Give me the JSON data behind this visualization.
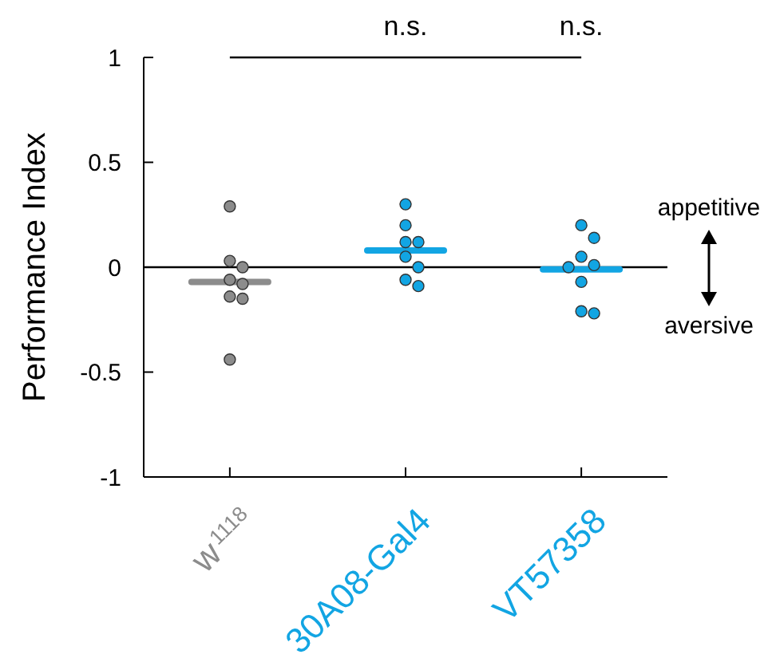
{
  "chart_data": {
    "type": "scatter",
    "ylabel": "Performance Index",
    "categories": [
      "w$^{1118}$",
      "30A08-Gal4",
      "VT57358"
    ],
    "colors": [
      "#8c8c8c",
      "#12a5e3",
      "#12a5e3"
    ],
    "ylim": [
      -1,
      1
    ],
    "yticks": [
      -1,
      -0.5,
      0,
      0.5,
      1
    ],
    "marker": "circle",
    "grid": false,
    "series": [
      {
        "x": [
          "w$^{1118}$",
          "w$^{1118}$",
          "w$^{1118}$",
          "w$^{1118}$",
          "w$^{1118}$",
          "w$^{1118}$",
          "w$^{1118}$",
          "w$^{1118}$"
        ],
        "color": "#8c8c8c",
        "values": [
          0.29,
          0.03,
          0.0,
          -0.06,
          -0.08,
          -0.14,
          -0.15,
          -0.44
        ]
      },
      {
        "x": [
          "30A08-Gal4",
          "30A08-Gal4",
          "30A08-Gal4",
          "30A08-Gal4",
          "30A08-Gal4",
          "30A08-Gal4",
          "30A08-Gal4",
          "30A08-Gal4"
        ],
        "color": "#12a5e3",
        "values": [
          0.3,
          0.2,
          0.12,
          0.12,
          0.05,
          0.0,
          -0.06,
          -0.09
        ]
      },
      {
        "x": [
          "VT57358",
          "VT57358",
          "VT57358",
          "VT57358",
          "VT57358",
          "VT57358",
          "VT57358",
          "VT57358"
        ],
        "color": "#12a5e3",
        "values": [
          0.2,
          0.14,
          0.05,
          0.01,
          0.0,
          -0.07,
          -0.21,
          -0.22
        ]
      },
      {
        "type": "box",
        "colors": [
          "#8c8c8c",
          "#12a5e3",
          "#12a5e3"
        ],
        "boxes": [
          {
            "low": -0.07,
            "q1": -0.07,
            "median": -0.07,
            "q3": -0.07,
            "high": -0.07
          },
          {
            "low": 0.08,
            "q1": 0.08,
            "median": 0.08,
            "q3": 0.08,
            "high": 0.08
          },
          {
            "low": -0.01,
            "q1": -0.01,
            "median": -0.01,
            "q3": -0.01,
            "high": -0.01
          }
        ]
      }
    ],
    "ref_lines": [
      {
        "axis": "y",
        "value": 0,
        "color": "#000000"
      }
    ],
    "annotations": [
      "n.s.",
      "n.s.",
      "appetitive",
      "aversive"
    ]
  }
}
